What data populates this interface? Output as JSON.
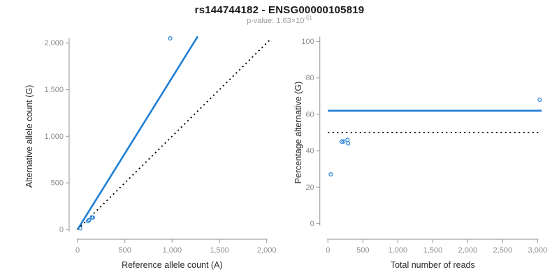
{
  "title": "rs144744182 - ENSG00000105819",
  "subtitle": {
    "label": "p-value: ",
    "base": "1.63×10",
    "exponent": "-51"
  },
  "colors": {
    "accent_blue": "#1f7fd6",
    "line_black": "#000000",
    "axis_line_gray": "#a3a3a3",
    "tick_label_gray": "#8c8c8c",
    "axis_title_color": "#2b2b2b",
    "subtitle_gray": "#9a9a9a",
    "background": "#ffffff"
  },
  "chart_data": [
    {
      "id": "allele-count-scatter",
      "type": "scatter",
      "xlabel": "Reference allele count (A)",
      "ylabel": "Alternative allele count (G)",
      "xlim": [
        0,
        2000
      ],
      "ylim": [
        0,
        2000
      ],
      "grid": false,
      "legend": "none",
      "x_ticks": {
        "values": [
          0,
          500,
          1000,
          1500,
          2000
        ],
        "labels": [
          "0",
          "500",
          "1,000",
          "1,500",
          "2,000"
        ]
      },
      "y_ticks": {
        "values": [
          0,
          500,
          1000,
          1500,
          2000
        ],
        "labels": [
          "0",
          "500",
          "1,000",
          "1,500",
          "2,000"
        ]
      },
      "points": [
        [
          29,
          11
        ],
        [
          109,
          89
        ],
        [
          122,
          100
        ],
        [
          151,
          129
        ],
        [
          162,
          128
        ],
        [
          980,
          2050
        ]
      ],
      "lines": [
        {
          "name": "fit-line",
          "style": "solid",
          "color_key": "accent_blue",
          "x": [
            0,
            1270
          ],
          "y": [
            0,
            2070
          ]
        },
        {
          "name": "identity-line",
          "style": "dotted",
          "color_key": "line_black",
          "x": [
            0,
            2050
          ],
          "y": [
            0,
            2050
          ]
        }
      ]
    },
    {
      "id": "percentage-alternative-scatter",
      "type": "scatter",
      "xlabel": "Total number of reads",
      "ylabel": "Percentage alternative (G)",
      "xlim": [
        0,
        3000
      ],
      "ylim": [
        0,
        100
      ],
      "grid": false,
      "legend": "none",
      "x_ticks": {
        "values": [
          0,
          500,
          1000,
          1500,
          2000,
          2500,
          3000
        ],
        "labels": [
          "0",
          "500",
          "1,000",
          "1,500",
          "2,000",
          "2,500",
          "3,000"
        ]
      },
      "y_ticks": {
        "values": [
          0,
          20,
          40,
          60,
          80,
          100
        ],
        "labels": [
          "0",
          "20",
          "40",
          "60",
          "80",
          "100"
        ]
      },
      "points": [
        [
          40,
          27
        ],
        [
          198,
          45
        ],
        [
          222,
          45
        ],
        [
          280,
          46
        ],
        [
          290,
          44
        ],
        [
          3030,
          68
        ]
      ],
      "lines": [
        {
          "name": "mean-percentage-line",
          "style": "solid",
          "color_key": "accent_blue",
          "x": [
            0,
            3060
          ],
          "y": [
            62,
            62
          ]
        },
        {
          "name": "fifty-percent-line",
          "style": "dotted",
          "color_key": "line_black",
          "x": [
            0,
            3030
          ],
          "y": [
            50,
            50
          ]
        }
      ]
    }
  ]
}
